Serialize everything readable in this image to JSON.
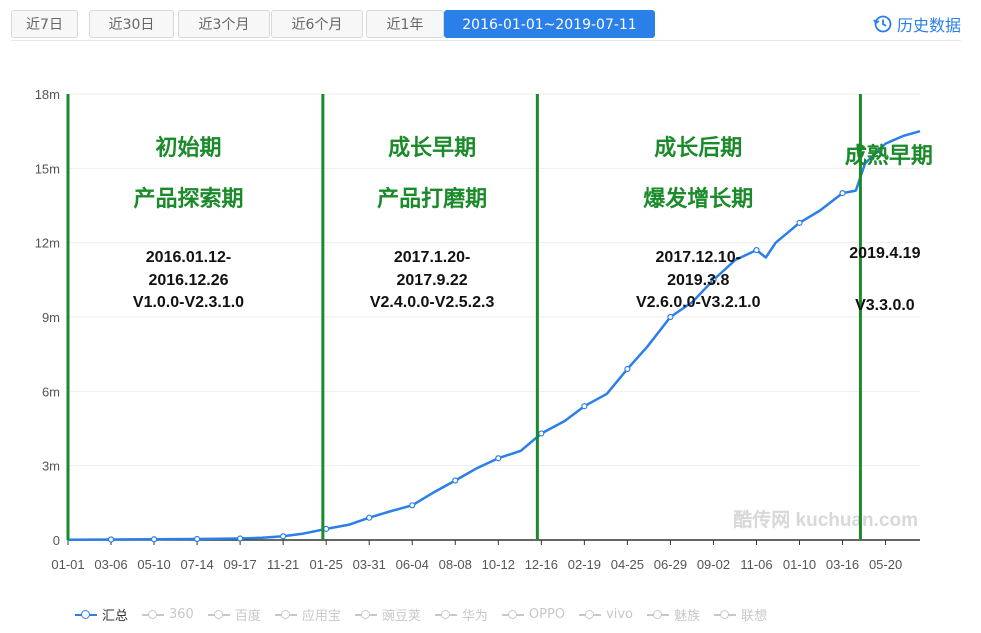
{
  "tabs": [
    {
      "label": "近7日",
      "active": false
    },
    {
      "label": "近30日",
      "active": false
    },
    {
      "label": "近3个月",
      "active": false
    },
    {
      "label": "近6个月",
      "active": false
    },
    {
      "label": "近1年",
      "active": false
    },
    {
      "label": "2016-01-01~2019-07-11",
      "active": true
    }
  ],
  "history_label": "历史数据",
  "watermark": "酷传网 kuchuan.com",
  "colors": {
    "accent": "#2a7fe8",
    "line": "#2a7fe8",
    "phase": "#1a8a2a",
    "axis": "#333333",
    "grid": "#eeeeee"
  },
  "legend": [
    {
      "label": "汇总",
      "active": true
    },
    {
      "label": "360",
      "active": false
    },
    {
      "label": "百度",
      "active": false
    },
    {
      "label": "应用宝",
      "active": false
    },
    {
      "label": "豌豆荚",
      "active": false
    },
    {
      "label": "华为",
      "active": false
    },
    {
      "label": "OPPO",
      "active": false
    },
    {
      "label": "vivo",
      "active": false
    },
    {
      "label": "魅族",
      "active": false
    },
    {
      "label": "联想",
      "active": false
    }
  ],
  "chart_data": {
    "type": "line",
    "xlim": [
      "2016-01-01",
      "2019-07-11"
    ],
    "ylim": [
      0,
      18
    ],
    "y_unit": "m",
    "y_ticks": [
      {
        "v": 0,
        "label": "0"
      },
      {
        "v": 3,
        "label": "3m"
      },
      {
        "v": 6,
        "label": "6m"
      },
      {
        "v": 9,
        "label": "9m"
      },
      {
        "v": 12,
        "label": "12m"
      },
      {
        "v": 15,
        "label": "15m"
      },
      {
        "v": 18,
        "label": "18m"
      }
    ],
    "x_ticks": [
      {
        "date": "2016-01-01",
        "label": "01-01"
      },
      {
        "date": "2016-03-06",
        "label": "03-06"
      },
      {
        "date": "2016-05-10",
        "label": "05-10"
      },
      {
        "date": "2016-07-14",
        "label": "07-14"
      },
      {
        "date": "2016-09-17",
        "label": "09-17"
      },
      {
        "date": "2016-11-21",
        "label": "11-21"
      },
      {
        "date": "2017-01-25",
        "label": "01-25"
      },
      {
        "date": "2017-03-31",
        "label": "03-31"
      },
      {
        "date": "2017-06-04",
        "label": "06-04"
      },
      {
        "date": "2017-08-08",
        "label": "08-08"
      },
      {
        "date": "2017-10-12",
        "label": "10-12"
      },
      {
        "date": "2017-12-16",
        "label": "12-16"
      },
      {
        "date": "2018-02-19",
        "label": "02-19"
      },
      {
        "date": "2018-04-25",
        "label": "04-25"
      },
      {
        "date": "2018-06-29",
        "label": "06-29"
      },
      {
        "date": "2018-09-02",
        "label": "09-02"
      },
      {
        "date": "2018-11-06",
        "label": "11-06"
      },
      {
        "date": "2019-01-10",
        "label": "01-10"
      },
      {
        "date": "2019-03-16",
        "label": "03-16"
      },
      {
        "date": "2019-05-20",
        "label": "05-20"
      }
    ],
    "grid": true,
    "series": [
      {
        "name": "汇总",
        "points": [
          {
            "date": "2016-01-01",
            "y": 0.01
          },
          {
            "date": "2016-03-06",
            "y": 0.02
          },
          {
            "date": "2016-05-10",
            "y": 0.03
          },
          {
            "date": "2016-07-14",
            "y": 0.04
          },
          {
            "date": "2016-09-17",
            "y": 0.06
          },
          {
            "date": "2016-10-20",
            "y": 0.09
          },
          {
            "date": "2016-11-21",
            "y": 0.15
          },
          {
            "date": "2016-12-20",
            "y": 0.25
          },
          {
            "date": "2017-01-25",
            "y": 0.45
          },
          {
            "date": "2017-03-01",
            "y": 0.62
          },
          {
            "date": "2017-03-31",
            "y": 0.9
          },
          {
            "date": "2017-05-01",
            "y": 1.15
          },
          {
            "date": "2017-06-04",
            "y": 1.4
          },
          {
            "date": "2017-07-05",
            "y": 1.9
          },
          {
            "date": "2017-08-08",
            "y": 2.4
          },
          {
            "date": "2017-09-10",
            "y": 2.9
          },
          {
            "date": "2017-10-12",
            "y": 3.3
          },
          {
            "date": "2017-11-15",
            "y": 3.6
          },
          {
            "date": "2017-12-16",
            "y": 4.3
          },
          {
            "date": "2018-01-20",
            "y": 4.8
          },
          {
            "date": "2018-02-19",
            "y": 5.4
          },
          {
            "date": "2018-03-25",
            "y": 5.9
          },
          {
            "date": "2018-04-25",
            "y": 6.9
          },
          {
            "date": "2018-05-25",
            "y": 7.8
          },
          {
            "date": "2018-06-29",
            "y": 9.0
          },
          {
            "date": "2018-08-01",
            "y": 9.6
          },
          {
            "date": "2018-09-02",
            "y": 10.5
          },
          {
            "date": "2018-10-05",
            "y": 11.3
          },
          {
            "date": "2018-11-06",
            "y": 11.7
          },
          {
            "date": "2018-11-20",
            "y": 11.4
          },
          {
            "date": "2018-12-05",
            "y": 12.0
          },
          {
            "date": "2019-01-10",
            "y": 12.8
          },
          {
            "date": "2019-02-10",
            "y": 13.3
          },
          {
            "date": "2019-03-16",
            "y": 14.0
          },
          {
            "date": "2019-04-05",
            "y": 14.1
          },
          {
            "date": "2019-04-19",
            "y": 15.2
          },
          {
            "date": "2019-05-20",
            "y": 16.0
          },
          {
            "date": "2019-06-15",
            "y": 16.3
          },
          {
            "date": "2019-07-11",
            "y": 16.5
          }
        ]
      }
    ],
    "marker_dates": [
      "2016-03-06",
      "2016-05-10",
      "2016-07-14",
      "2016-09-17",
      "2016-11-21",
      "2017-01-25",
      "2017-03-31",
      "2017-06-04",
      "2017-08-08",
      "2017-10-12",
      "2017-12-16",
      "2018-02-19",
      "2018-04-25",
      "2018-06-29",
      "2018-09-02",
      "2018-11-06",
      "2019-01-10",
      "2019-03-16"
    ],
    "phase_lines": [
      "2016-01-01",
      "2017-01-20",
      "2017-12-10",
      "2019-04-12"
    ],
    "phases": [
      {
        "name": "初始期",
        "sub": "产品探索期",
        "range1": "2016.01.12-",
        "range2": "2016.12.26",
        "version": "V1.0.0-V2.3.1.0",
        "anchor": "2016-07-01"
      },
      {
        "name": "成长早期",
        "sub": "产品打磨期",
        "range1": "2017.1.20-",
        "range2": "2017.9.22",
        "version": "V2.4.0.0-V2.5.2.3",
        "anchor": "2017-07-04"
      },
      {
        "name": "成长后期",
        "sub": "爆发增长期",
        "range1": "2017.12.10-",
        "range2": "2019.3.8",
        "version": "V2.6.0.0-V3.2.1.0",
        "anchor": "2018-08-10"
      },
      {
        "name": "成熟早期",
        "sub": "",
        "range1": "2019.4.19",
        "range2": "",
        "version": "V3.3.0.0",
        "anchor": "2019-05-25"
      }
    ]
  }
}
